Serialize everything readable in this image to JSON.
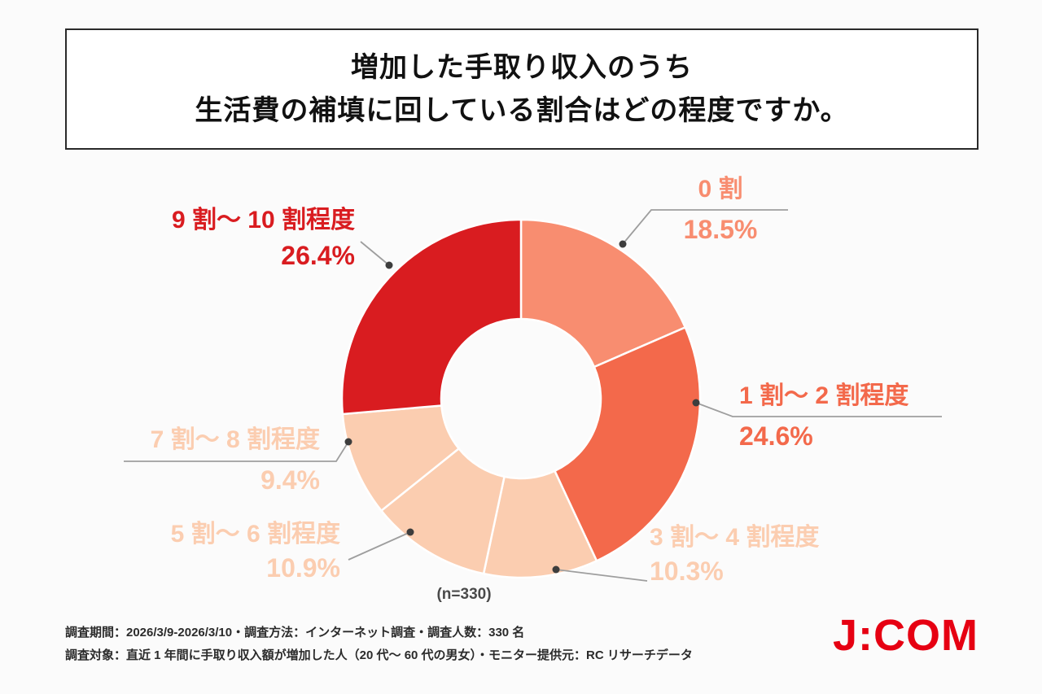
{
  "title": {
    "line1": "増加した手取り収入のうち",
    "line2": "生活費の補填に回している割合はどの程度ですか。"
  },
  "chart_data": {
    "type": "pie",
    "subtype": "donut",
    "title": "増加した手取り収入のうち生活費の補填に回している割合はどの程度ですか。",
    "n_label": "(n=330)",
    "total_n": 330,
    "start_angle": "top",
    "direction": "clockwise",
    "segments": [
      {
        "label": "0 割",
        "value": 18.5,
        "pct_label": "18.5%",
        "color": "#f88d70"
      },
      {
        "label": "1 割〜 2 割程度",
        "value": 24.6,
        "pct_label": "24.6%",
        "color": "#f3694b"
      },
      {
        "label": "3 割〜 4 割程度",
        "value": 10.3,
        "pct_label": "10.3%",
        "color": "#fbcdb0"
      },
      {
        "label": "5 割〜 6 割程度",
        "value": 10.9,
        "pct_label": "10.9%",
        "color": "#fbcdb0"
      },
      {
        "label": "7 割〜 8 割程度",
        "value": 9.4,
        "pct_label": "9.4%",
        "color": "#fbcdb0"
      },
      {
        "label": "9 割〜 10 割程度",
        "value": 26.4,
        "pct_label": "26.4%",
        "color": "#d91c20"
      }
    ]
  },
  "footer": {
    "line1": "調査期間：2026/3/9-2026/3/10・調査方法：インターネット調査・調査人数：330 名",
    "line2": "調査対象：直近 1 年間に手取り収入額が増加した人（20 代〜 60 代の男女）・モニター提供元：RC リサーチデータ",
    "logo": "J:COM"
  }
}
